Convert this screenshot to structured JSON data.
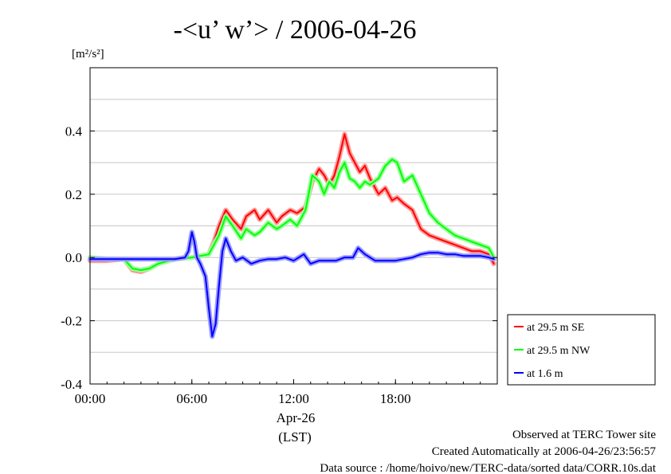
{
  "chart_data": {
    "type": "line",
    "title": "-<u’ w’> / 2006-04-26",
    "ylabel": "[m²/s²]",
    "xlabel": "(LST)",
    "x_date_label": "Apr-26",
    "ylim": [
      -0.4,
      0.6
    ],
    "xlim_hours": [
      0,
      24
    ],
    "x_ticks": [
      "00:00",
      "06:00",
      "12:00",
      "18:00"
    ],
    "x_tick_hours": [
      0,
      6,
      12,
      18
    ],
    "y_ticks": [
      "0.4",
      "0.2",
      "0.0",
      "-0.2",
      "-0.4"
    ],
    "y_tick_values": [
      0.4,
      0.2,
      0.0,
      -0.2,
      -0.4
    ],
    "legend_position": "right-bottom-outside",
    "series": [
      {
        "name": "at 29.5 m SE",
        "color": "#ff0000",
        "x": [
          0,
          1,
          2,
          2.5,
          3,
          3.5,
          4,
          5,
          6,
          7,
          7.3,
          7.6,
          8,
          8.4,
          8.9,
          9.2,
          9.7,
          10,
          10.5,
          11,
          11.3,
          11.8,
          12.2,
          12.7,
          13.1,
          13.5,
          13.8,
          14.1,
          14.4,
          14.7,
          15,
          15.3,
          15.6,
          15.9,
          16.2,
          16.5,
          17,
          17.4,
          17.8,
          18.1,
          18.5,
          19,
          19.5,
          20,
          20.5,
          21,
          21.5,
          22,
          22.5,
          23,
          23.5,
          23.8
        ],
        "values": [
          -0.01,
          -0.01,
          -0.005,
          -0.04,
          -0.045,
          -0.035,
          -0.02,
          -0.005,
          0.0,
          0.01,
          0.05,
          0.1,
          0.15,
          0.12,
          0.09,
          0.13,
          0.15,
          0.12,
          0.15,
          0.11,
          0.13,
          0.15,
          0.14,
          0.16,
          0.24,
          0.28,
          0.26,
          0.23,
          0.26,
          0.32,
          0.39,
          0.33,
          0.3,
          0.27,
          0.29,
          0.25,
          0.2,
          0.22,
          0.18,
          0.19,
          0.17,
          0.15,
          0.09,
          0.07,
          0.06,
          0.05,
          0.04,
          0.03,
          0.02,
          0.02,
          0.01,
          -0.02
        ]
      },
      {
        "name": "at 29.5 m NW",
        "color": "#00ff00",
        "x": [
          0,
          1,
          2,
          2.5,
          3,
          3.5,
          4,
          5,
          6,
          7,
          7.3,
          7.6,
          8,
          8.4,
          8.9,
          9.2,
          9.7,
          10,
          10.5,
          11,
          11.3,
          11.8,
          12.2,
          12.7,
          13.1,
          13.5,
          13.8,
          14.1,
          14.4,
          14.7,
          15,
          15.3,
          15.6,
          15.9,
          16.2,
          16.5,
          17,
          17.4,
          17.8,
          18.1,
          18.5,
          19,
          19.5,
          20,
          20.5,
          21,
          21.5,
          22,
          22.5,
          23,
          23.5,
          23.8
        ],
        "values": [
          0.0,
          -0.005,
          -0.005,
          -0.035,
          -0.04,
          -0.035,
          -0.02,
          -0.005,
          0.0,
          0.01,
          0.04,
          0.07,
          0.13,
          0.1,
          0.06,
          0.09,
          0.07,
          0.08,
          0.11,
          0.09,
          0.1,
          0.12,
          0.1,
          0.15,
          0.26,
          0.24,
          0.2,
          0.24,
          0.22,
          0.27,
          0.3,
          0.25,
          0.24,
          0.22,
          0.24,
          0.23,
          0.25,
          0.29,
          0.31,
          0.3,
          0.24,
          0.26,
          0.2,
          0.14,
          0.11,
          0.09,
          0.07,
          0.06,
          0.05,
          0.04,
          0.03,
          0.0
        ]
      },
      {
        "name": "at 1.6 m",
        "color": "#0000ff",
        "x": [
          0,
          1,
          2,
          3,
          4,
          5,
          5.6,
          5.8,
          6.0,
          6.15,
          6.3,
          6.5,
          6.8,
          7.0,
          7.2,
          7.4,
          7.6,
          7.8,
          8.0,
          8.3,
          8.6,
          9,
          9.5,
          10,
          10.5,
          11,
          11.5,
          12,
          12.3,
          12.6,
          13,
          13.5,
          14,
          14.5,
          15,
          15.5,
          15.8,
          16.2,
          16.8,
          17.5,
          18,
          18.5,
          19,
          19.5,
          20,
          20.5,
          21,
          21.5,
          22,
          22.5,
          23,
          23.5,
          23.8
        ],
        "values": [
          -0.005,
          -0.005,
          -0.005,
          -0.005,
          -0.005,
          -0.005,
          0.0,
          0.02,
          0.08,
          0.05,
          0.0,
          -0.02,
          -0.06,
          -0.16,
          -0.25,
          -0.21,
          -0.09,
          0.02,
          0.06,
          0.02,
          -0.01,
          0.0,
          -0.02,
          -0.01,
          -0.005,
          -0.005,
          0.0,
          -0.01,
          0.0,
          0.01,
          -0.02,
          -0.01,
          -0.01,
          -0.01,
          0.0,
          0.0,
          0.03,
          0.01,
          -0.01,
          -0.01,
          -0.01,
          -0.005,
          0.0,
          0.01,
          0.015,
          0.015,
          0.01,
          0.01,
          0.005,
          0.005,
          0.005,
          0.0,
          -0.005
        ]
      }
    ]
  },
  "footer": {
    "line1": "Observed at TERC Tower site",
    "line2": "Created Automatically at 2006-04-26/23:56:57",
    "line3": "Data source : /home/hoivo/new/TERC-data/sorted  data/CORR.10s.dat"
  }
}
